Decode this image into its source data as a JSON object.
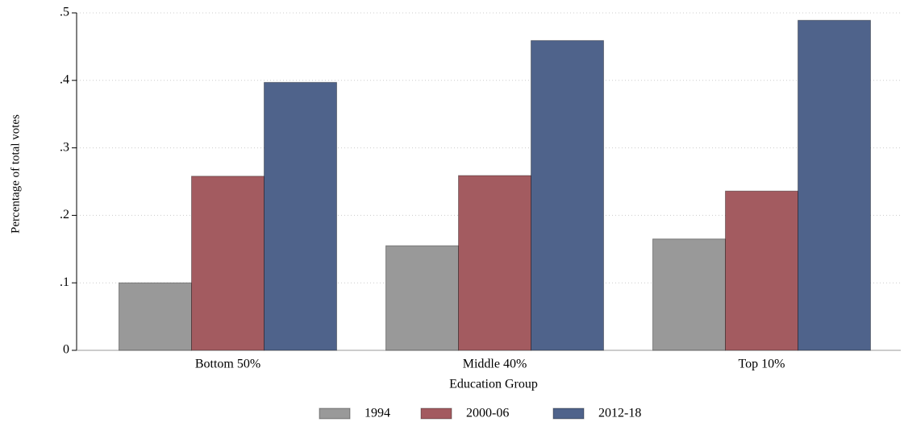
{
  "chart_data": {
    "type": "bar",
    "x_label": "Education Group",
    "y_label": "Percentage of total votes",
    "categories": [
      "Bottom 50%",
      "Middle 40%",
      "Top 10%"
    ],
    "series": [
      {
        "name": "1994",
        "color": "#999999",
        "values": [
          0.1,
          0.155,
          0.165
        ]
      },
      {
        "name": "2000-06",
        "color": "#a35b60",
        "values": [
          0.258,
          0.259,
          0.236
        ]
      },
      {
        "name": "2012-18",
        "color": "#4f638b",
        "values": [
          0.397,
          0.459,
          0.489
        ]
      }
    ],
    "ylim": [
      0,
      0.5
    ],
    "yticks": [
      0,
      {
        "value": 0.1,
        "label": ".1"
      },
      {
        "value": 0.2,
        "label": ".2"
      },
      {
        "value": 0.3,
        "label": ".3"
      },
      {
        "value": 0.4,
        "label": ".4"
      },
      {
        "value": 0.5,
        "label": ".5"
      }
    ],
    "grid": true,
    "legend": "bottom"
  }
}
